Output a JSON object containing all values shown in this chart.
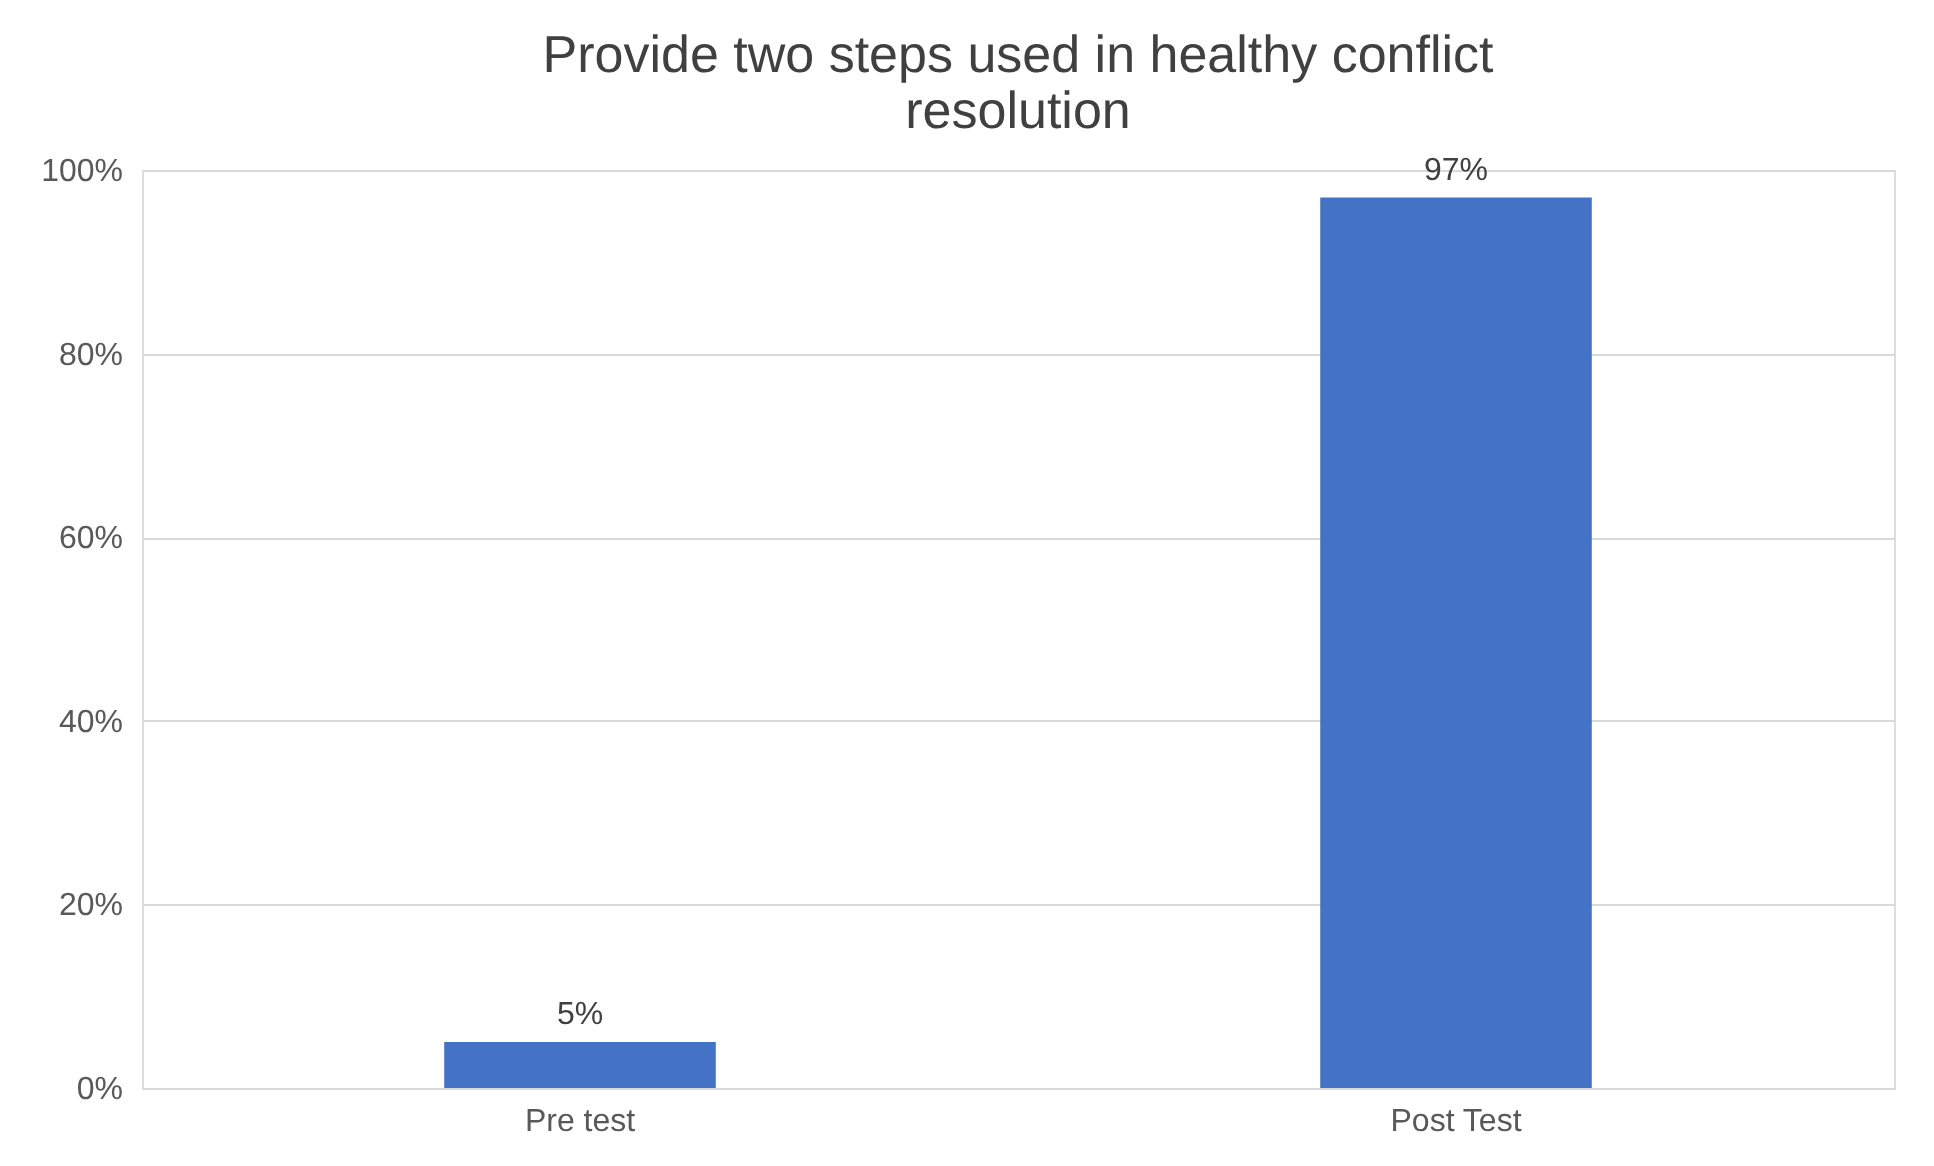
{
  "chart_data": {
    "type": "bar",
    "title": [
      "Provide two steps used in healthy conflict",
      "resolution"
    ],
    "categories": [
      "Pre test",
      "Post Test"
    ],
    "values": [
      5,
      97
    ],
    "color": "#4472c4",
    "value_labels": [
      "5%",
      "97%"
    ],
    "ylim": [
      0,
      100
    ],
    "yticks": [
      {
        "value": 0,
        "label": "0%"
      },
      {
        "value": 20,
        "label": "20%"
      },
      {
        "value": 40,
        "label": "40%"
      },
      {
        "value": 60,
        "label": "60%"
      },
      {
        "value": 80,
        "label": "80%"
      },
      {
        "value": 100,
        "label": "100%"
      }
    ],
    "grid": "y"
  }
}
